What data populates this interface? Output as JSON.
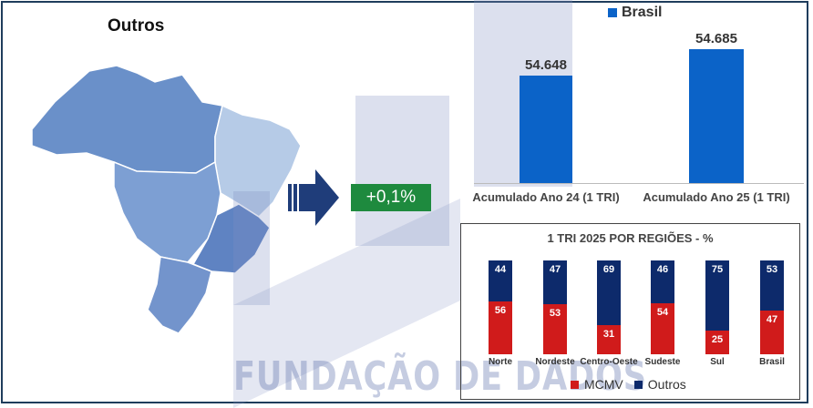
{
  "region_title": "Outros",
  "growth": "+0,1%",
  "watermark": "FUNDAÇÃO DE DADOS",
  "colors": {
    "brasil": "#0b63c8",
    "mcmv": "#d01b1b",
    "outros": "#0d2a6b",
    "growth": "#1e8a3e"
  },
  "chart_data": [
    {
      "type": "bar",
      "legend": [
        "Brasil"
      ],
      "categories": [
        "Acumulado Ano 24 (1 TRI)",
        "Acumulado Ano 25 (1 TRI)"
      ],
      "series": [
        {
          "name": "Brasil",
          "values": [
            54648,
            54685
          ],
          "labels": [
            "54.648",
            "54.685"
          ]
        }
      ],
      "ylim": [
        54500,
        54700
      ]
    },
    {
      "type": "bar",
      "stacked": true,
      "title": "1 TRI 2025 POR REGIÕES - %",
      "categories": [
        "Norte",
        "Nordeste",
        "Centro-Oeste",
        "Sudeste",
        "Sul",
        "Brasil"
      ],
      "series": [
        {
          "name": "MCMV",
          "values": [
            56,
            53,
            31,
            54,
            25,
            47
          ]
        },
        {
          "name": "Outros",
          "values": [
            44,
            47,
            69,
            46,
            75,
            53
          ]
        }
      ],
      "ylim": [
        0,
        100
      ],
      "legend_position": "bottom"
    }
  ]
}
